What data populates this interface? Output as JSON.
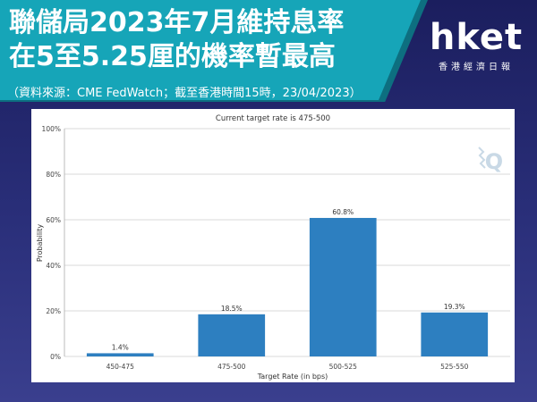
{
  "header": {
    "title_line1": "聯儲局2023年7月維持息率",
    "title_line2": "在5至5.25厘的機率暫最高",
    "source": "（資料來源：CME FedWatch；截至香港時間15時，23/04/2023）"
  },
  "logo": {
    "mark": "hket",
    "subtitle": "香港經濟日報"
  },
  "chart_data": {
    "type": "bar",
    "title": "Current target rate is 475-500",
    "xlabel": "Target Rate (in bps)",
    "ylabel": "Probability",
    "categories": [
      "450-475",
      "475-500",
      "500-525",
      "525-550"
    ],
    "values": [
      1.4,
      18.5,
      60.8,
      19.3
    ],
    "value_labels": [
      "1.4%",
      "18.5%",
      "60.8%",
      "19.3%"
    ],
    "yticks": [
      "0%",
      "20%",
      "40%",
      "60%",
      "80%",
      "100%"
    ],
    "ylim": [
      0,
      100
    ],
    "bar_color": "#2d7fc0",
    "grid": true
  },
  "colors": {
    "background": "#1f2368",
    "banner": "#16a5b8"
  }
}
